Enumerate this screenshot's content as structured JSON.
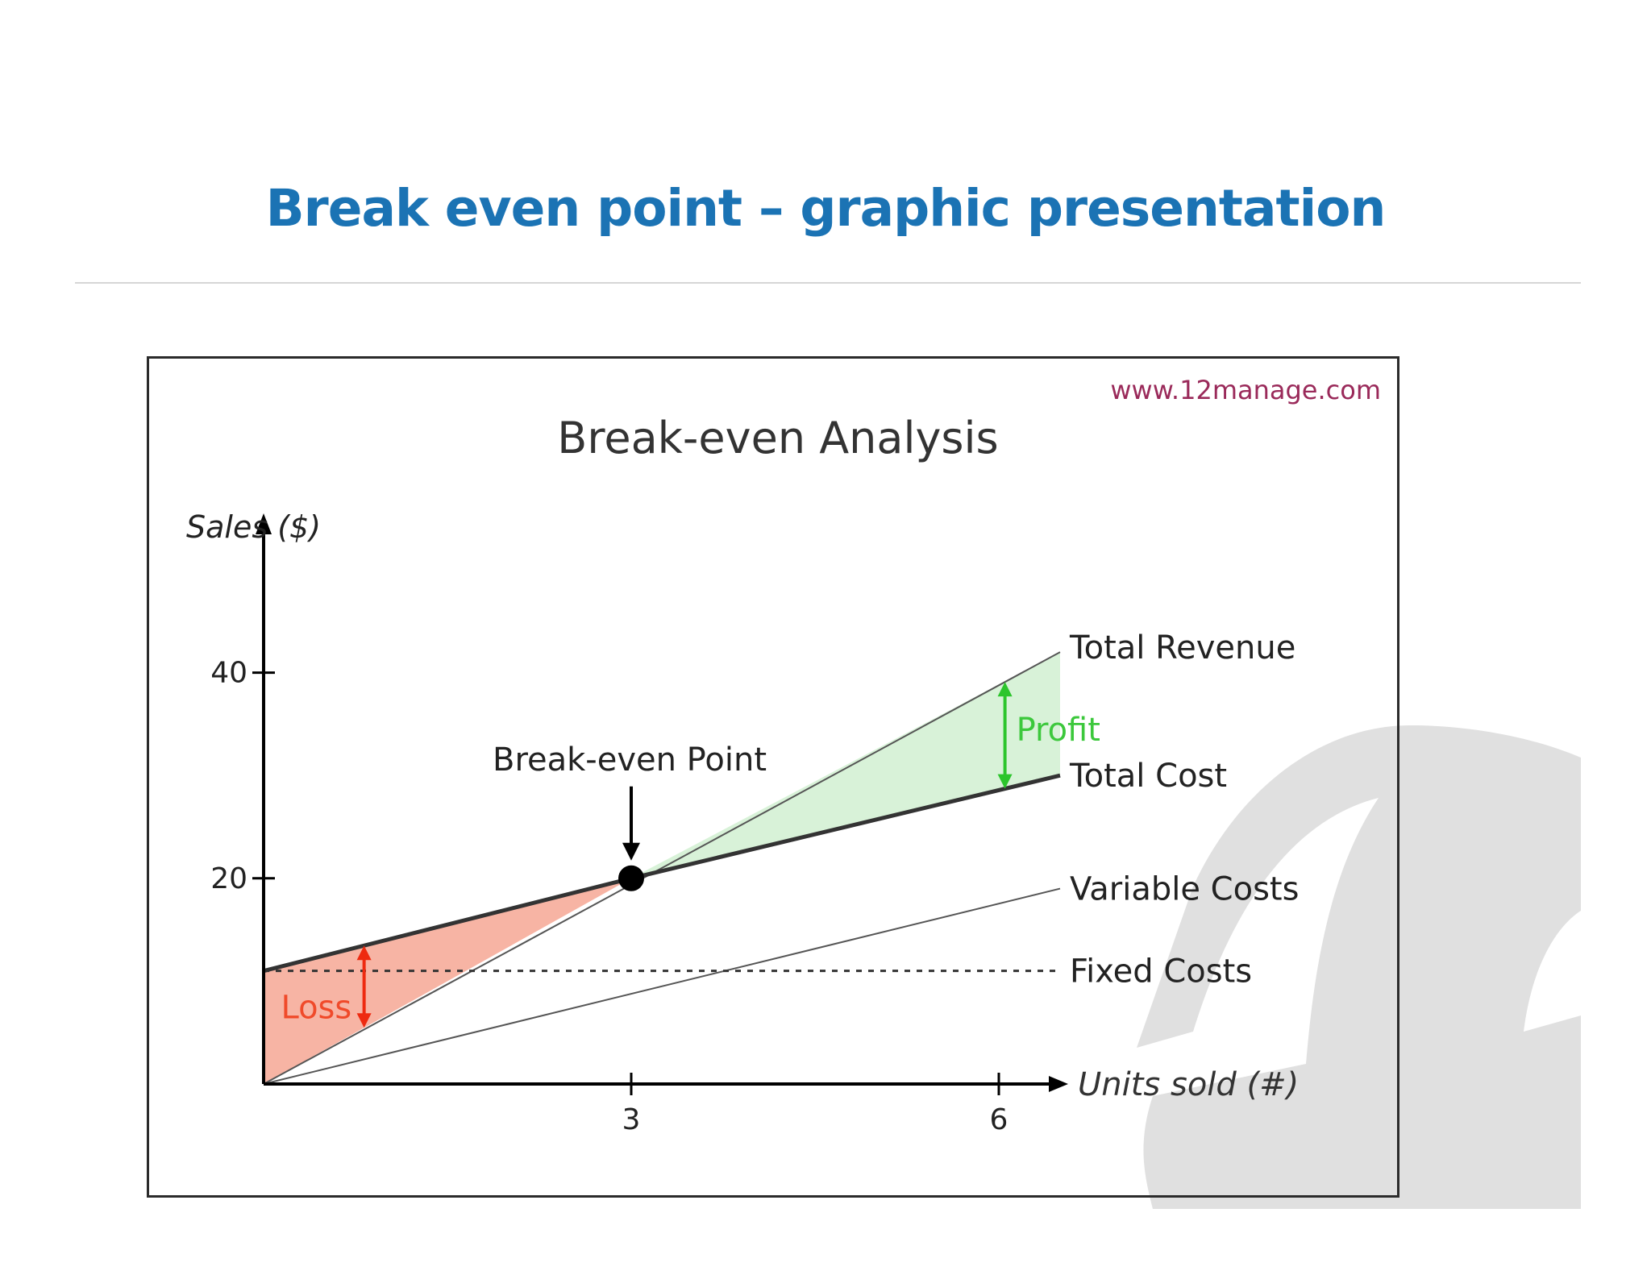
{
  "slide": {
    "title": "Break even point – graphic presentation"
  },
  "chart_data": {
    "type": "line",
    "title": "Break-even Analysis",
    "source_credit": "www.12manage.com",
    "xlabel": "Units sold (#)",
    "ylabel": "Sales ($)",
    "x_ticks": [
      3,
      6
    ],
    "y_ticks": [
      20,
      40
    ],
    "xlim": [
      0,
      6.6
    ],
    "ylim": [
      0,
      50
    ],
    "grid": false,
    "series": [
      {
        "name": "Total Revenue",
        "x": [
          0,
          6.5
        ],
        "y": [
          0,
          42
        ],
        "color": "#555555"
      },
      {
        "name": "Total Cost",
        "x": [
          0,
          3,
          6.5
        ],
        "y": [
          11,
          20,
          30
        ],
        "color": "#333333"
      },
      {
        "name": "Variable Costs",
        "x": [
          0,
          6.5
        ],
        "y": [
          0,
          19
        ],
        "color": "#555555"
      },
      {
        "name": "Fixed Costs",
        "x": [
          0,
          6.5
        ],
        "y": [
          11,
          11
        ],
        "color": "#333333",
        "style": "dashed"
      }
    ],
    "break_even_point": {
      "x": 3,
      "y": 20,
      "label": "Break-even Point"
    },
    "regions": [
      {
        "label": "Loss",
        "color": "#f7b4a4",
        "text_color": "#f04a2a",
        "arrow_color": "#ee2a10"
      },
      {
        "label": "Profit",
        "color": "#d8f2d8",
        "text_color": "#3cc83c",
        "arrow_color": "#2cc52c"
      }
    ],
    "watermark_color": "#e0e0e0"
  }
}
